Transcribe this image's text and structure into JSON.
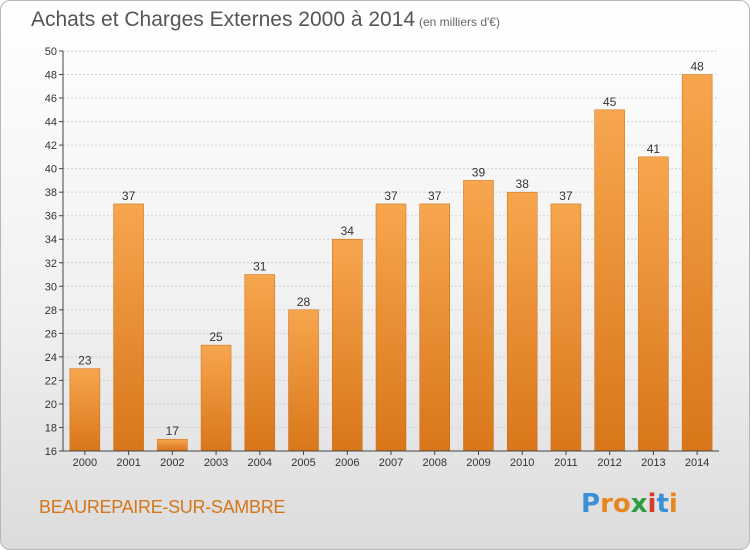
{
  "title": "Achats et Charges Externes 2000 à 2014",
  "subtitle": "(en milliers d'€)",
  "location": "BEAUREPAIRE-SUR-SAMBRE",
  "logo": {
    "letters": [
      "P",
      "r",
      "o",
      "x",
      "i",
      "t",
      "i"
    ],
    "colors": [
      "#3b8fd6",
      "#e8861f",
      "#e8861f",
      "#2e9e3e",
      "#d43a2b",
      "#3b8fd6",
      "#e8861f"
    ]
  },
  "colors": {
    "bar_top": "#f7a64e",
    "bar_bottom": "#d9761a",
    "bar_edge": "#c96a14",
    "grid": "#d0d0d0",
    "axis": "#444444",
    "text": "#333333"
  },
  "chart_data": {
    "type": "bar",
    "categories": [
      "2000",
      "2001",
      "2002",
      "2003",
      "2004",
      "2005",
      "2006",
      "2007",
      "2008",
      "2009",
      "2010",
      "2011",
      "2012",
      "2013",
      "2014"
    ],
    "values": [
      23,
      37,
      17,
      25,
      31,
      28,
      34,
      37,
      37,
      39,
      38,
      37,
      45,
      41,
      48
    ],
    "ylim": [
      16,
      50
    ],
    "yticks": [
      16,
      18,
      20,
      22,
      24,
      26,
      28,
      30,
      32,
      34,
      36,
      38,
      40,
      42,
      44,
      46,
      48,
      50
    ],
    "grid": true,
    "xlabel": "",
    "ylabel": ""
  }
}
